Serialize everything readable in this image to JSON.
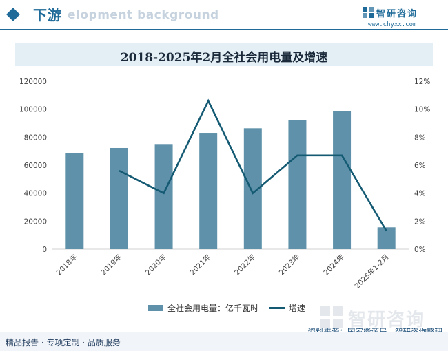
{
  "header": {
    "section_title": "下游",
    "banner_text": "elopment background"
  },
  "brand": {
    "name": "智研咨询",
    "url": "www.chyxx.com"
  },
  "watermark": {
    "text": "智研咨询"
  },
  "chart_data": {
    "type": "bar",
    "title": "2018-2025年2月全社会用电量及增速",
    "categories": [
      "2018年",
      "2019年",
      "2020年",
      "2021年",
      "2022年",
      "2023年",
      "2024年",
      "2025年1-2月"
    ],
    "series": [
      {
        "name": "全社会用电量：亿千瓦时",
        "type": "bar",
        "axis": "left",
        "color": "#5f92aa",
        "values": [
          68400,
          72300,
          75100,
          83100,
          86400,
          92200,
          98500,
          15600
        ]
      },
      {
        "name": "增速",
        "type": "line",
        "axis": "right",
        "color": "#145a73",
        "values": [
          null,
          5.6,
          4.0,
          10.6,
          4.0,
          6.7,
          6.7,
          1.3
        ]
      }
    ],
    "ylim": [
      0,
      120000
    ],
    "yticks": [
      "0",
      "20000",
      "40000",
      "60000",
      "80000",
      "100000",
      "120000"
    ],
    "y2lim": [
      0,
      12
    ],
    "y2ticks": [
      "0%",
      "2%",
      "4%",
      "6%",
      "8%",
      "10%",
      "12%"
    ],
    "legend_position": "bottom",
    "grid": false
  },
  "source": {
    "text": "资料来源：国家能源局、智研咨询整理"
  },
  "footer": {
    "tagline": "精品报告 · 专项定制 · 品质服务"
  }
}
